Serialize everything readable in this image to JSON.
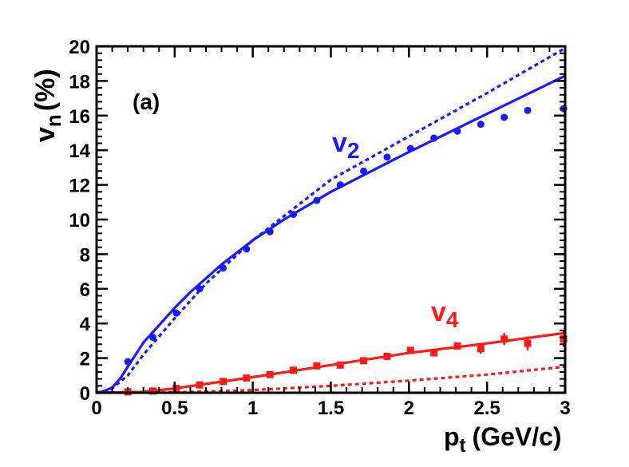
{
  "chart_data": {
    "type": "line",
    "panel_label": "(a)",
    "xlabel": {
      "main": "p",
      "sub": "t",
      "units": "(GeV/c)"
    },
    "ylabel": {
      "main": "v",
      "sub": "n",
      "units": "(%)"
    },
    "xlim": [
      0,
      3
    ],
    "ylim": [
      0,
      20
    ],
    "x_ticks": [
      0,
      0.5,
      1,
      1.5,
      2,
      2.5,
      3
    ],
    "x_tick_labels": [
      "0",
      "0.5",
      "1",
      "1.5",
      "2",
      "2.5",
      "3"
    ],
    "y_ticks": [
      0,
      2,
      4,
      6,
      8,
      10,
      12,
      14,
      16,
      18,
      20
    ],
    "y_tick_labels": [
      "0",
      "2",
      "4",
      "6",
      "8",
      "10",
      "12",
      "14",
      "16",
      "18",
      "20"
    ],
    "colors": {
      "v2": "#1a1aff",
      "v4": "#ff1a1a",
      "axis": "#000000"
    },
    "series": [
      {
        "name": "v2 data",
        "label_main": "v",
        "label_sub": "2",
        "style": "markers",
        "marker": "circle",
        "color": "#1a1aff",
        "x": [
          0.2,
          0.36,
          0.51,
          0.66,
          0.81,
          0.96,
          1.11,
          1.26,
          1.41,
          1.56,
          1.71,
          1.86,
          2.01,
          2.16,
          2.31,
          2.46,
          2.61,
          2.76,
          2.99
        ],
        "y": [
          1.8,
          3.2,
          4.6,
          6.0,
          7.2,
          8.3,
          9.3,
          10.3,
          11.1,
          12.0,
          12.8,
          13.6,
          14.1,
          14.7,
          15.1,
          15.5,
          15.9,
          16.3,
          16.4
        ]
      },
      {
        "name": "v2 model solid",
        "style": "solid",
        "color": "#1a1aff",
        "x": [
          0,
          0.05,
          0.1,
          0.15,
          0.2,
          0.3,
          0.4,
          0.5,
          0.6,
          0.8,
          1.0,
          1.2,
          1.5,
          2.0,
          2.5,
          3.0
        ],
        "y": [
          0,
          0.1,
          0.3,
          0.8,
          1.5,
          2.9,
          3.9,
          4.9,
          5.8,
          7.4,
          8.8,
          10.0,
          11.6,
          13.9,
          16.1,
          18.3
        ]
      },
      {
        "name": "v2 model dotted",
        "style": "dotted",
        "color": "#1a1aff",
        "x": [
          0,
          0.1,
          0.2,
          0.3,
          0.5,
          0.7,
          1.0,
          1.5,
          2.0,
          2.5,
          3.0
        ],
        "y": [
          0,
          0.25,
          1.0,
          2.2,
          4.3,
          6.3,
          8.8,
          12.3,
          14.8,
          17.3,
          19.9
        ]
      },
      {
        "name": "v4 data",
        "label_main": "v",
        "label_sub": "4",
        "style": "markers",
        "marker": "square",
        "color": "#ff1a1a",
        "x": [
          0.2,
          0.36,
          0.51,
          0.66,
          0.81,
          0.96,
          1.11,
          1.26,
          1.41,
          1.56,
          1.71,
          1.86,
          2.01,
          2.16,
          2.31,
          2.46,
          2.61,
          2.76,
          2.99
        ],
        "y": [
          0.05,
          0.1,
          0.25,
          0.45,
          0.65,
          0.85,
          1.05,
          1.3,
          1.55,
          1.6,
          1.85,
          2.1,
          2.45,
          2.3,
          2.7,
          2.55,
          3.1,
          2.85,
          3.1
        ],
        "err": [
          0.1,
          0.1,
          0.1,
          0.1,
          0.1,
          0.1,
          0.1,
          0.15,
          0.15,
          0.15,
          0.15,
          0.2,
          0.2,
          0.2,
          0.2,
          0.3,
          0.35,
          0.4,
          0.45
        ]
      },
      {
        "name": "v4 model solid",
        "style": "solid",
        "color": "#ff1a1a",
        "x": [
          0,
          0.3,
          0.5,
          1.0,
          1.5,
          2.0,
          2.5,
          3.0
        ],
        "y": [
          0,
          0.05,
          0.25,
          0.9,
          1.6,
          2.3,
          2.85,
          3.45
        ]
      },
      {
        "name": "v4 model dotted",
        "style": "dotted",
        "color": "#ff1a1a",
        "x": [
          0,
          0.5,
          1.0,
          1.5,
          2.0,
          2.5,
          3.0
        ],
        "y": [
          0,
          0.02,
          0.15,
          0.4,
          0.7,
          1.05,
          1.5
        ]
      }
    ]
  }
}
